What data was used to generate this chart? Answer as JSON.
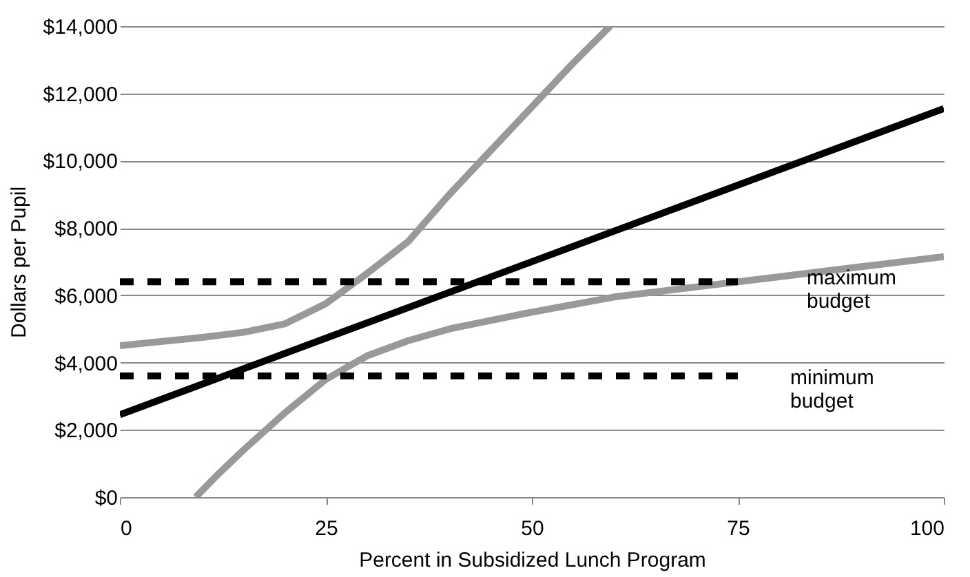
{
  "chart_data": {
    "type": "line",
    "xlabel": "Percent in Subsidized Lunch Program",
    "ylabel": "Dollars per Pupil",
    "xlim": [
      0,
      100
    ],
    "xticks": [
      0,
      25,
      50,
      75,
      100
    ],
    "ylim": [
      0,
      14000
    ],
    "yticks": [
      {
        "value": 0,
        "label": "$0"
      },
      {
        "value": 2000,
        "label": "$2,000"
      },
      {
        "value": 4000,
        "label": "$4,000"
      },
      {
        "value": 6000,
        "label": "$6,000"
      },
      {
        "value": 8000,
        "label": "$8,000"
      },
      {
        "value": 10000,
        "label": "$10,000"
      },
      {
        "value": 12000,
        "label": "$12,000"
      },
      {
        "value": 14000,
        "label": "$14,000"
      }
    ],
    "grid": "y",
    "marker": "none",
    "series": [
      {
        "color": "#999999",
        "line_style": "solid",
        "x": [
          0,
          10,
          15,
          20,
          25,
          30,
          35,
          40,
          45,
          50,
          55,
          59.5
        ],
        "values": [
          4500,
          4750,
          4900,
          5150,
          5750,
          6650,
          7600,
          9000,
          10300,
          11600,
          12900,
          14000
        ]
      },
      {
        "color": "#999999",
        "line_style": "solid",
        "x": [
          9.2,
          12,
          15,
          20,
          25,
          30,
          35,
          40,
          50,
          60,
          70,
          80,
          90,
          100
        ],
        "values": [
          0,
          700,
          1400,
          2500,
          3500,
          4200,
          4650,
          5000,
          5500,
          5950,
          6250,
          6550,
          6850,
          7150
        ]
      },
      {
        "color": "#000000",
        "line_style": "solid",
        "x": [
          0,
          100
        ],
        "values": [
          2450,
          11550
        ]
      },
      {
        "color": "#000000",
        "line_style": "dashed",
        "x": [
          0,
          75
        ],
        "values": [
          6400,
          6400
        ]
      },
      {
        "color": "#000000",
        "line_style": "dashed",
        "x": [
          0,
          75
        ],
        "values": [
          3600,
          3600
        ]
      }
    ],
    "annotations": [
      "maximum budget",
      "minimum budget"
    ]
  }
}
